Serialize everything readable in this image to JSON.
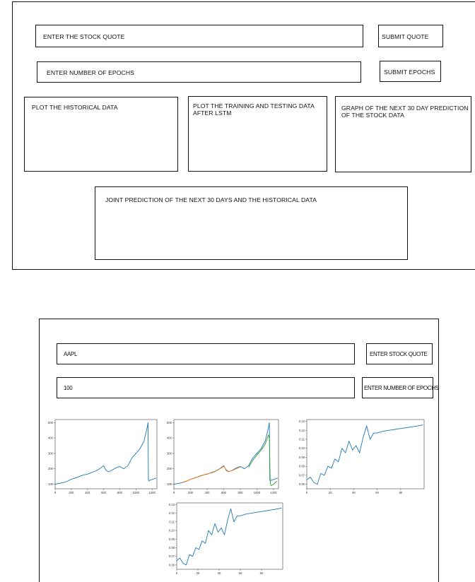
{
  "wireframe": {
    "stock_input_label": "ENTER THE STOCK QUOTE",
    "submit_quote_label": "SUBMIT QUOTE",
    "epochs_input_label": "ENTER NUMBER OF EPOCHS",
    "submit_epochs_label": "SUBMIT EPOCHS",
    "panel_historical": "PLOT THE HISTORICAL DATA",
    "panel_training": "PLOT THE TRAINING AND TESTING DATA AFTER LSTM",
    "panel_prediction": "GRAPH OF THE NEXT 30 DAY PREDICTION OF THE STOCK DATA",
    "panel_joint": "JOINT PREDICTION OF THE NEXT 30 DAYS AND THE HISTORICAL DATA"
  },
  "app": {
    "stock_value": "AAPL",
    "stock_button": "ENTER STOCK QUOTE",
    "epochs_value": "100",
    "epochs_button": "ENTER NUMBER OF EPOCHS"
  },
  "chart_data": [
    {
      "type": "line",
      "x_ticks": [
        "0",
        "200",
        "400",
        "600",
        "800",
        "1000",
        "1200"
      ],
      "y_ticks": [
        "100",
        "200",
        "300",
        "400",
        "500"
      ],
      "xlim": [
        0,
        1260
      ],
      "ylim": [
        70,
        520
      ],
      "series": [
        {
          "color": "#1f77b4",
          "x": [
            0,
            50,
            100,
            150,
            200,
            250,
            300,
            350,
            400,
            450,
            500,
            550,
            600,
            630,
            660,
            700,
            750,
            800,
            850,
            900,
            950,
            1000,
            1050,
            1100,
            1140,
            1150,
            1155,
            1160,
            1170,
            1200,
            1250
          ],
          "values": [
            100,
            105,
            110,
            118,
            132,
            140,
            150,
            160,
            165,
            175,
            185,
            200,
            220,
            190,
            180,
            190,
            205,
            215,
            200,
            220,
            270,
            300,
            330,
            380,
            470,
            500,
            130,
            120,
            125,
            130,
            140
          ]
        }
      ]
    },
    {
      "type": "line",
      "x_ticks": [
        "0",
        "200",
        "400",
        "600",
        "800",
        "1000",
        "1200"
      ],
      "y_ticks": [
        "100",
        "200",
        "300",
        "400",
        "500"
      ],
      "xlim": [
        0,
        1260
      ],
      "ylim": [
        70,
        520
      ],
      "series": [
        {
          "color": "#1f77b4",
          "x": [
            0,
            50,
            100,
            150,
            200,
            250,
            300,
            350,
            400,
            450,
            500,
            550,
            600,
            630,
            660,
            700,
            750,
            800,
            850,
            900,
            950,
            1000,
            1050,
            1100,
            1140,
            1150,
            1155,
            1160,
            1170,
            1200,
            1250
          ],
          "values": [
            100,
            105,
            110,
            118,
            132,
            140,
            150,
            160,
            165,
            175,
            185,
            200,
            220,
            190,
            180,
            190,
            205,
            215,
            200,
            220,
            270,
            300,
            330,
            380,
            470,
            500,
            130,
            120,
            125,
            130,
            140
          ]
        },
        {
          "color": "#ff7f0e",
          "x": [
            100,
            150,
            200,
            250,
            300,
            350,
            400,
            450,
            500,
            550,
            600,
            630,
            660,
            700,
            750,
            800
          ],
          "values": [
            112,
            120,
            130,
            142,
            148,
            158,
            168,
            172,
            183,
            198,
            215,
            195,
            182,
            188,
            200,
            212
          ]
        },
        {
          "color": "#2ca02c",
          "x": [
            900,
            950,
            1000,
            1050,
            1100,
            1140,
            1150,
            1160,
            1170,
            1200,
            1240
          ],
          "values": [
            210,
            255,
            290,
            320,
            360,
            420,
            400,
            110,
            90,
            100,
            120
          ]
        }
      ]
    },
    {
      "type": "line",
      "x_ticks": [
        "0",
        "20",
        "40",
        "60",
        "80"
      ],
      "y_ticks": [
        "0.06",
        "0.07",
        "0.08",
        "0.09",
        "0.10",
        "0.11",
        "0.12",
        "0.13"
      ],
      "xlim": [
        0,
        100
      ],
      "ylim": [
        0.055,
        0.132
      ],
      "series": [
        {
          "color": "#1f77b4",
          "x": [
            0,
            3,
            6,
            9,
            12,
            15,
            18,
            21,
            24,
            27,
            30,
            33,
            36,
            39,
            42,
            45,
            48,
            51,
            54,
            57,
            60,
            65,
            70,
            75,
            80,
            85,
            90,
            95,
            99
          ],
          "values": [
            0.065,
            0.068,
            0.062,
            0.06,
            0.072,
            0.07,
            0.08,
            0.078,
            0.088,
            0.085,
            0.1,
            0.095,
            0.108,
            0.098,
            0.103,
            0.095,
            0.112,
            0.125,
            0.11,
            0.117,
            0.117,
            0.119,
            0.12,
            0.121,
            0.122,
            0.123,
            0.124,
            0.125,
            0.126
          ]
        }
      ]
    },
    {
      "type": "line",
      "x_ticks": [
        "0",
        "20",
        "40",
        "60",
        "80"
      ],
      "y_ticks": [
        "0.06",
        "0.07",
        "0.08",
        "0.09",
        "0.10",
        "0.11",
        "0.12",
        "0.13"
      ],
      "xlim": [
        0,
        100
      ],
      "ylim": [
        0.055,
        0.132
      ],
      "series": [
        {
          "color": "#1f77b4",
          "x": [
            0,
            3,
            6,
            9,
            12,
            15,
            18,
            21,
            24,
            27,
            30,
            33,
            36,
            39,
            42,
            45,
            48,
            51,
            54,
            57,
            60,
            65,
            70,
            75,
            80,
            85,
            90,
            95,
            99
          ],
          "values": [
            0.065,
            0.068,
            0.062,
            0.06,
            0.072,
            0.07,
            0.08,
            0.078,
            0.088,
            0.085,
            0.1,
            0.095,
            0.108,
            0.098,
            0.103,
            0.095,
            0.112,
            0.125,
            0.11,
            0.117,
            0.117,
            0.119,
            0.12,
            0.121,
            0.122,
            0.123,
            0.124,
            0.125,
            0.126
          ]
        }
      ]
    }
  ]
}
